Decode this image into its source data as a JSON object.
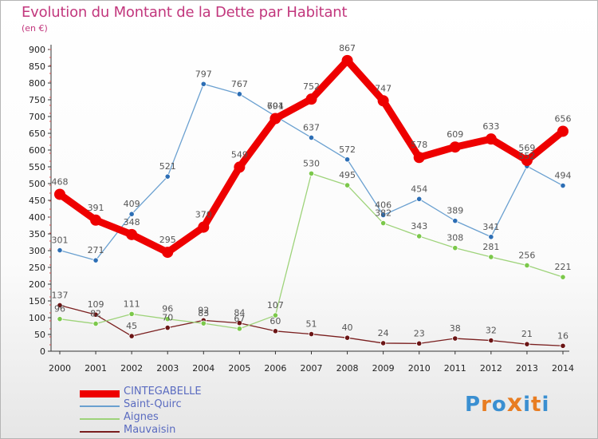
{
  "header": {
    "title": "Evolution du Montant de la Dette par Habitant",
    "subtitle": "(en €)"
  },
  "logo": [
    "P",
    "r",
    "o",
    "x",
    "i",
    "t",
    "i"
  ],
  "colors": {
    "title": "#c2377d",
    "logo_letters": [
      "#3a8fd1",
      "#e87d22",
      "#3a8fd1",
      "#e87d22",
      "#3a8fd1",
      "#e87d22",
      "#3a8fd1"
    ]
  },
  "chart_data": {
    "type": "line",
    "title": "Evolution du Montant de la Dette par Habitant",
    "ylabel": "(en €)",
    "xlabel": "",
    "ylim": [
      0,
      900
    ],
    "yticks": [
      0,
      50,
      100,
      150,
      200,
      250,
      300,
      350,
      400,
      450,
      500,
      550,
      600,
      650,
      700,
      750,
      800,
      850,
      900
    ],
    "grid": false,
    "legend_position": "bottom-left",
    "x": [
      "2000",
      "2001",
      "2002",
      "2003",
      "2004",
      "2005",
      "2006",
      "2007",
      "2008",
      "2009",
      "2010",
      "2011",
      "2012",
      "2013",
      "2014"
    ],
    "series": [
      {
        "name": "CINTEGABELLE",
        "color": "#ee0000",
        "bold": true,
        "values": [
          468,
          391,
          348,
          295,
          370,
          549,
          694,
          752,
          867,
          747,
          578,
          609,
          633,
          569,
          656
        ]
      },
      {
        "name": "Saint-Quirc",
        "color": "#6aa0d0",
        "marker": "#2c6eb5",
        "values": [
          301,
          271,
          409,
          521,
          797,
          767,
          701,
          637,
          572,
          406,
          454,
          389,
          341,
          552,
          494
        ]
      },
      {
        "name": "Aignes",
        "color": "#9ed37a",
        "marker": "#7bc84a",
        "values": [
          96,
          82,
          111,
          96,
          83,
          67,
          107,
          530,
          495,
          382,
          343,
          308,
          281,
          256,
          221
        ]
      },
      {
        "name": "Mauvaisin",
        "color": "#7a1f1f",
        "marker": "#6b1515",
        "values": [
          137,
          109,
          45,
          70,
          92,
          84,
          60,
          51,
          40,
          24,
          23,
          38,
          32,
          21,
          16
        ]
      }
    ]
  }
}
